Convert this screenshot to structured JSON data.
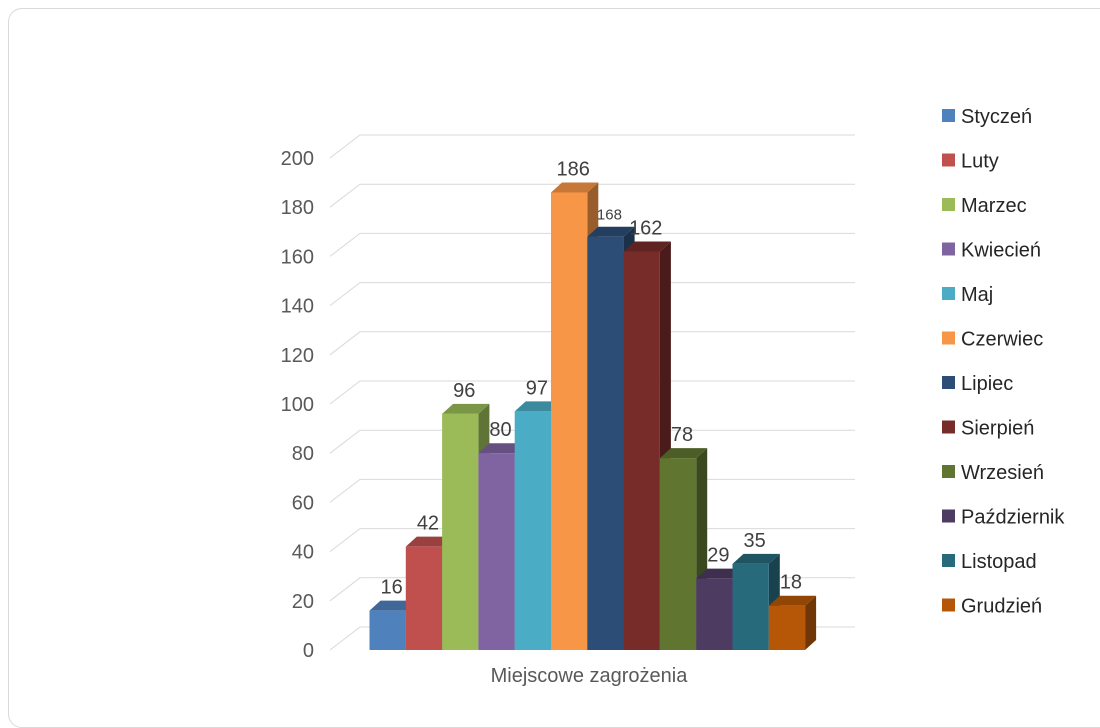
{
  "chart_data": {
    "type": "bar",
    "style": "3d-clustered-column",
    "categories": [
      "Miejscowe zagrożenia"
    ],
    "series": [
      {
        "name": "Styczeń",
        "values": [
          16
        ],
        "color": "#4F81BD"
      },
      {
        "name": "Luty",
        "values": [
          42
        ],
        "color": "#C0504D"
      },
      {
        "name": "Marzec",
        "values": [
          96
        ],
        "color": "#9BBB59"
      },
      {
        "name": "Kwiecień",
        "values": [
          80
        ],
        "color": "#8064A2"
      },
      {
        "name": "Maj",
        "values": [
          97
        ],
        "color": "#4BACC6"
      },
      {
        "name": "Czerwiec",
        "values": [
          186
        ],
        "color": "#F79646"
      },
      {
        "name": "Lipiec",
        "values": [
          168
        ],
        "color": "#2C4D75"
      },
      {
        "name": "Sierpień",
        "values": [
          162
        ],
        "color": "#772C2A"
      },
      {
        "name": "Wrzesień",
        "values": [
          78
        ],
        "color": "#5F7530"
      },
      {
        "name": "Październik",
        "values": [
          29
        ],
        "color": "#4D3B62"
      },
      {
        "name": "Listopad",
        "values": [
          35
        ],
        "color": "#276A7C"
      },
      {
        "name": "Grudzień",
        "values": [
          18
        ],
        "color": "#B65708"
      }
    ],
    "ylim": [
      0,
      200
    ],
    "yticks": [
      "0",
      "20",
      "40",
      "60",
      "80",
      "100",
      "120",
      "140",
      "160",
      "180",
      "200"
    ],
    "xlabel": "Miejscowe zagrożenia",
    "grid": true,
    "legend": "right"
  }
}
